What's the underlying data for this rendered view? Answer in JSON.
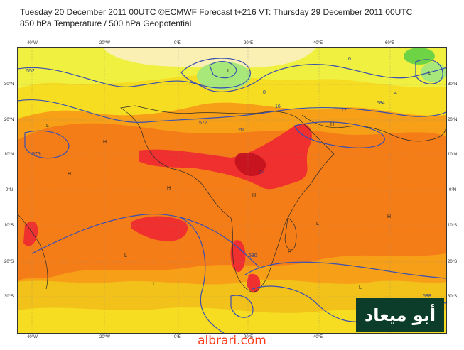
{
  "header": {
    "line1": "Tuesday 20 December 2011 00UTC ©ECMWF Forecast t+216 VT: Thursday 29 December 2011 00UTC",
    "line2": "850 hPa Temperature / 500 hPa Geopotential"
  },
  "map": {
    "lon_labels": [
      "40°W",
      "20°W",
      "0°E",
      "20°E",
      "40°E",
      "60°E"
    ],
    "lat_labels": [
      "30°N",
      "20°N",
      "10°N",
      "0°N",
      "10°S",
      "20°S",
      "30°S"
    ],
    "temperature_colors": [
      "#fbf0b4",
      "#f0f040",
      "#f7dd22",
      "#f2c21a",
      "#f7a017",
      "#f47d18",
      "#f02f2f",
      "#c8141e",
      "#a8e87a",
      "#6fd346"
    ],
    "contour_labels": [
      "552",
      "572",
      "576",
      "580",
      "584",
      "588",
      "16",
      "12",
      "8",
      "4",
      "0",
      "20",
      "24"
    ],
    "pressure_markers": [
      "H",
      "L"
    ],
    "contour_color": "#3a4fb0"
  },
  "branding": {
    "logo_text": "أبو ميعاد",
    "site_text": "albrari.com"
  }
}
